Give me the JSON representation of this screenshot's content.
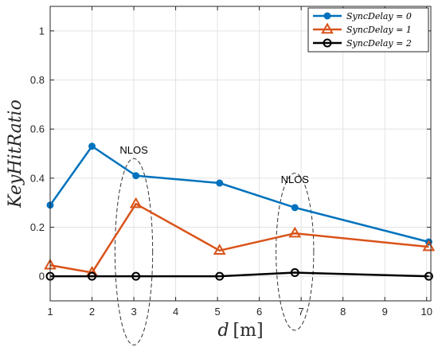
{
  "chart_data": {
    "type": "line",
    "title": "",
    "xlabel": "d",
    "xlabel_unit": "[m]",
    "ylabel": "KeyHitRatio",
    "xlim": [
      1,
      10.1
    ],
    "ylim": [
      -0.1,
      1.1
    ],
    "xticks": [
      1,
      2,
      3,
      4,
      5,
      6,
      7,
      8,
      9,
      10
    ],
    "yticks": [
      0,
      0.2,
      0.4,
      0.6,
      0.8,
      1
    ],
    "ytick_labels": [
      "0",
      "0.2",
      "0.4",
      "0.6",
      "0.8",
      "1"
    ],
    "grid": true,
    "legend_position": "top-right",
    "series": [
      {
        "name": "SyncDelay = 0",
        "color": "#0072BD",
        "marker": "circle-filled",
        "x": [
          1,
          2,
          3.05,
          5.05,
          6.85,
          10.05
        ],
        "y": [
          0.29,
          0.53,
          0.41,
          0.38,
          0.28,
          0.14
        ]
      },
      {
        "name": "SyncDelay = 1",
        "color": "#D95319",
        "marker": "triangle-open",
        "x": [
          1,
          2,
          3.05,
          5.05,
          6.85,
          10.05
        ],
        "y": [
          0.045,
          0.015,
          0.295,
          0.105,
          0.175,
          0.12
        ]
      },
      {
        "name": "SyncDelay = 2",
        "color": "#000000",
        "marker": "circle-open",
        "x": [
          1,
          2,
          3.05,
          5.05,
          6.85,
          10.05
        ],
        "y": [
          0,
          0,
          0,
          0,
          0.015,
          0
        ]
      }
    ],
    "annotations": [
      {
        "text": "NLOS",
        "x": 3.0,
        "y": 0.5
      },
      {
        "text": "NLOS",
        "x": 6.85,
        "y": 0.38
      }
    ],
    "ellipses": [
      {
        "cx": 3.0,
        "cy": 0.1,
        "rx": 0.45,
        "ry": 0.38
      },
      {
        "cx": 6.85,
        "cy": 0.1,
        "rx": 0.45,
        "ry": 0.32
      }
    ]
  }
}
